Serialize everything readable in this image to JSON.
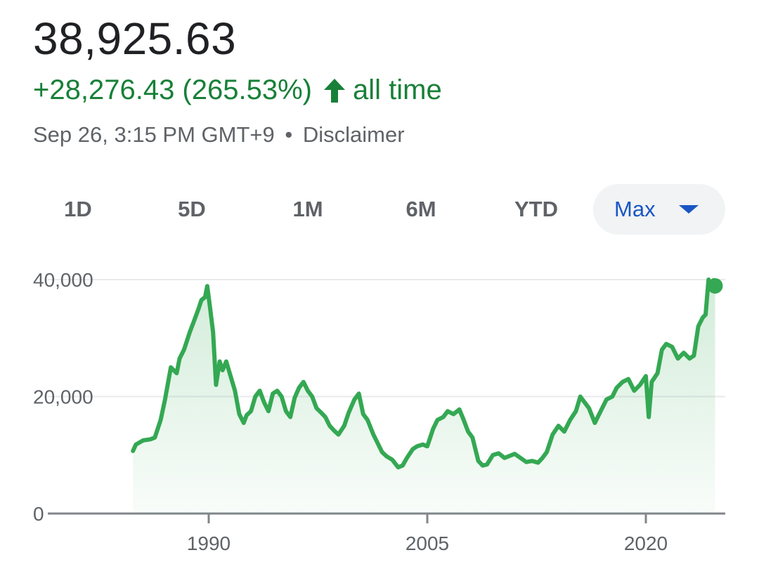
{
  "quote": {
    "price": "38,925.63",
    "change": "+28,276.43 (265.53%)",
    "period": "all time",
    "timestamp": "Sep 26, 3:15 PM GMT+9",
    "separator": "•",
    "disclaimer": "Disclaimer"
  },
  "colors": {
    "up": "#188038",
    "line": "#34a853",
    "selected_tab": "#1a56c4",
    "text_muted": "#5f6368"
  },
  "tabs": [
    {
      "label": "1D"
    },
    {
      "label": "5D"
    },
    {
      "label": "1M"
    },
    {
      "label": "6M"
    },
    {
      "label": "YTD"
    },
    {
      "label": "Max",
      "selected": true
    }
  ],
  "chart_data": {
    "type": "area",
    "ylim": [
      0,
      40000
    ],
    "yticks": [
      "0",
      "20,000",
      "40,000"
    ],
    "xticks": [
      "1990",
      "2005",
      "2020"
    ],
    "grid": true,
    "x": [
      1984.8,
      1985,
      1985.5,
      1986,
      1986.3,
      1986.7,
      1987,
      1987.4,
      1987.8,
      1988,
      1988.3,
      1988.7,
      1989,
      1989.3,
      1989.5,
      1989.75,
      1989.9,
      1990.1,
      1990.3,
      1990.5,
      1990.75,
      1990.95,
      1991.2,
      1991.5,
      1991.8,
      1992.1,
      1992.4,
      1992.6,
      1992.9,
      1993.2,
      1993.5,
      1993.8,
      1994.1,
      1994.4,
      1994.7,
      1995.0,
      1995.3,
      1995.6,
      1995.9,
      1996.2,
      1996.5,
      1996.8,
      1997.1,
      1997.4,
      1997.7,
      1998.0,
      1998.3,
      1998.6,
      1998.9,
      1999.3,
      1999.6,
      2000.0,
      2000.3,
      2000.6,
      2000.9,
      2001.3,
      2001.6,
      2001.9,
      2002.2,
      2002.6,
      2003.0,
      2003.3,
      2003.6,
      2004.0,
      2004.3,
      2004.7,
      2005.0,
      2005.4,
      2005.7,
      2006.1,
      2006.4,
      2006.8,
      2007.2,
      2007.5,
      2007.8,
      2008.1,
      2008.5,
      2008.8,
      2009.1,
      2009.5,
      2009.9,
      2010.3,
      2010.6,
      2011.0,
      2011.4,
      2011.8,
      2012.2,
      2012.6,
      2012.9,
      2013.2,
      2013.6,
      2014.0,
      2014.4,
      2014.8,
      2015.2,
      2015.5,
      2015.8,
      2016.1,
      2016.5,
      2016.9,
      2017.3,
      2017.7,
      2018.0,
      2018.4,
      2018.8,
      2019.2,
      2019.6,
      2020.0,
      2020.2,
      2020.4,
      2020.8,
      2021.1,
      2021.4,
      2021.8,
      2022.2,
      2022.6,
      2023.0,
      2023.3,
      2023.6,
      2023.9,
      2024.1,
      2024.3,
      2024.5,
      2024.65,
      2024.75
    ],
    "values": [
      10700,
      11800,
      12500,
      12700,
      13000,
      16000,
      19500,
      25000,
      24000,
      26500,
      28000,
      31000,
      33000,
      35000,
      36500,
      37000,
      38900,
      35000,
      31000,
      22000,
      26000,
      24500,
      26000,
      23500,
      21000,
      17000,
      15500,
      16800,
      17500,
      20000,
      21000,
      19000,
      17500,
      20500,
      21000,
      20000,
      17500,
      16500,
      19800,
      21500,
      22500,
      21000,
      20000,
      18000,
      17300,
      16500,
      15000,
      14200,
      13500,
      15000,
      17200,
      19500,
      20500,
      17000,
      16000,
      13500,
      12000,
      10500,
      9800,
      9200,
      7900,
      8200,
      9500,
      11000,
      11500,
      11800,
      11500,
      14500,
      16000,
      16500,
      17500,
      17000,
      17800,
      16000,
      14000,
      13000,
      9000,
      8200,
      8400,
      10000,
      10300,
      9500,
      9800,
      10200,
      9500,
      8800,
      9000,
      8700,
      9500,
      10500,
      13500,
      15000,
      14000,
      16000,
      17500,
      20000,
      19000,
      18000,
      15500,
      17500,
      19500,
      20000,
      21500,
      22500,
      23000,
      21000,
      22000,
      23500,
      16500,
      22500,
      24000,
      28000,
      29000,
      28500,
      26500,
      27500,
      26500,
      27000,
      32000,
      33500,
      34000,
      40000,
      38500,
      39900,
      38925.63
    ]
  }
}
